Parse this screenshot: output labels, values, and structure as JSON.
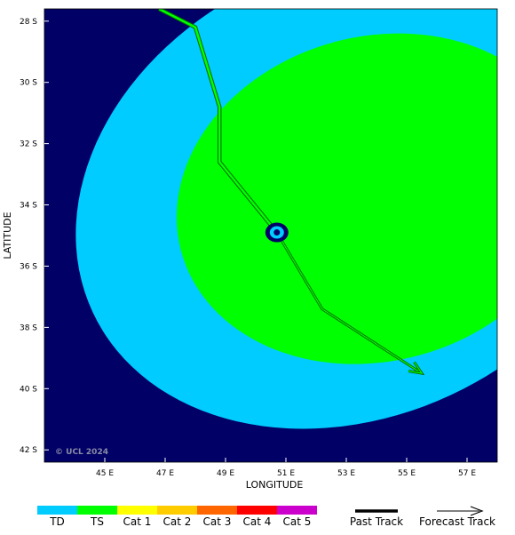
{
  "map": {
    "xlabel": "LONGITUDE",
    "ylabel": "LATITUDE",
    "copyright": "© UCL 2024",
    "x_ticks": [
      "45 E",
      "47 E",
      "49 E",
      "51 E",
      "53 E",
      "55 E",
      "57 E"
    ],
    "y_ticks": [
      "28 S",
      "30 S",
      "32 S",
      "34 S",
      "36 S",
      "38 S",
      "40 S",
      "42 S"
    ],
    "lon_range": [
      43.0,
      58.0
    ],
    "lat_range": [
      27.6,
      42.4
    ],
    "colors": {
      "background": "#000066",
      "td": "#00ccff",
      "ts": "#00ff00",
      "eye": "#000066"
    }
  },
  "chart_data": {
    "type": "map",
    "wind_fields": [
      {
        "category": "TD",
        "center_lon": 53.3,
        "center_lat": 33.5,
        "radius_lon_deg": 9.6,
        "radius_lat_deg": 7.4,
        "rotation_deg": -25
      },
      {
        "category": "TS",
        "center_lon": 54.0,
        "center_lat": 33.8,
        "radius_lon_deg": 6.7,
        "radius_lat_deg": 5.3,
        "rotation_deg": -15
      }
    ],
    "storm_position": {
      "lon": 50.7,
      "lat": 34.9
    },
    "past_track": [
      {
        "lon": 46.8,
        "lat": 27.6
      },
      {
        "lon": 48.0,
        "lat": 28.2
      },
      {
        "lon": 48.8,
        "lat": 30.8
      },
      {
        "lon": 48.8,
        "lat": 32.6
      },
      {
        "lon": 50.7,
        "lat": 34.9
      }
    ],
    "forecast_track": [
      {
        "lon": 50.7,
        "lat": 34.9
      },
      {
        "lon": 52.2,
        "lat": 37.4
      },
      {
        "lon": 55.5,
        "lat": 39.5
      }
    ]
  },
  "legend": {
    "categories": [
      {
        "label": "TD",
        "color": "#00ccff"
      },
      {
        "label": "TS",
        "color": "#00ff00"
      },
      {
        "label": "Cat 1",
        "color": "#ffff00"
      },
      {
        "label": "Cat 2",
        "color": "#ffcc00"
      },
      {
        "label": "Cat 3",
        "color": "#ff6600"
      },
      {
        "label": "Cat 4",
        "color": "#ff0000"
      },
      {
        "label": "Cat 5",
        "color": "#cc00cc"
      }
    ],
    "past_track_label": "Past Track",
    "forecast_track_label": "Forecast Track"
  }
}
